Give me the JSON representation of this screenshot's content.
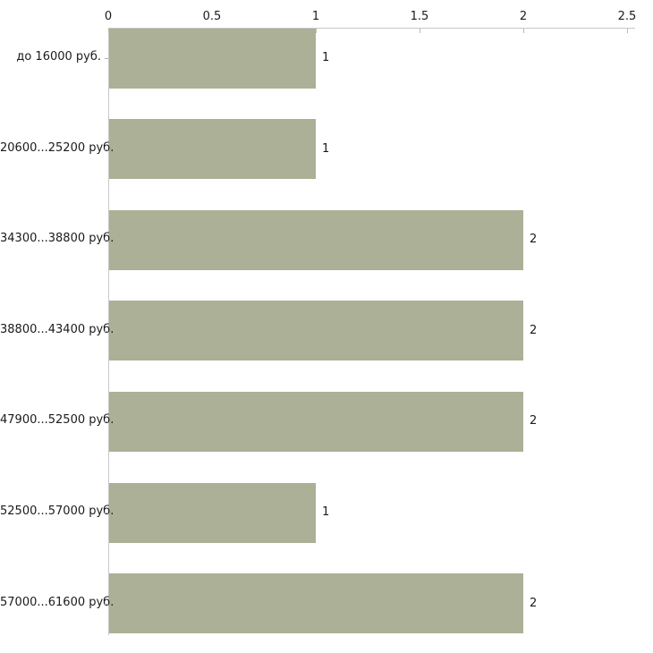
{
  "chart_data": {
    "type": "bar",
    "orientation": "horizontal",
    "title": "",
    "xlabel": "",
    "ylabel": "",
    "categories": [
      "до 16000 руб.",
      "20600...25200 руб.",
      "34300...38800 руб.",
      "38800...43400 руб.",
      "47900...52500 руб.",
      "52500...57000 руб.",
      "57000...61600 руб."
    ],
    "values": [
      1,
      1,
      2,
      2,
      2,
      1,
      2
    ],
    "value_labels": [
      "1",
      "1",
      "2",
      "2",
      "2",
      "1",
      "2"
    ],
    "xlim": [
      0,
      2.5
    ],
    "xticks": [
      0,
      0.5,
      1,
      1.5,
      2,
      2.5
    ],
    "xtick_labels": [
      "0",
      "0.5",
      "1",
      "1.5",
      "2",
      "2.5"
    ],
    "x_axis_position": "top",
    "grid": false,
    "legend": "none",
    "bar_color": "#abb096",
    "axis_color": "#c8c8c8",
    "tick_color": "#bdbda0",
    "text_color": "#1a1a1a",
    "background_color": "#ffffff"
  }
}
